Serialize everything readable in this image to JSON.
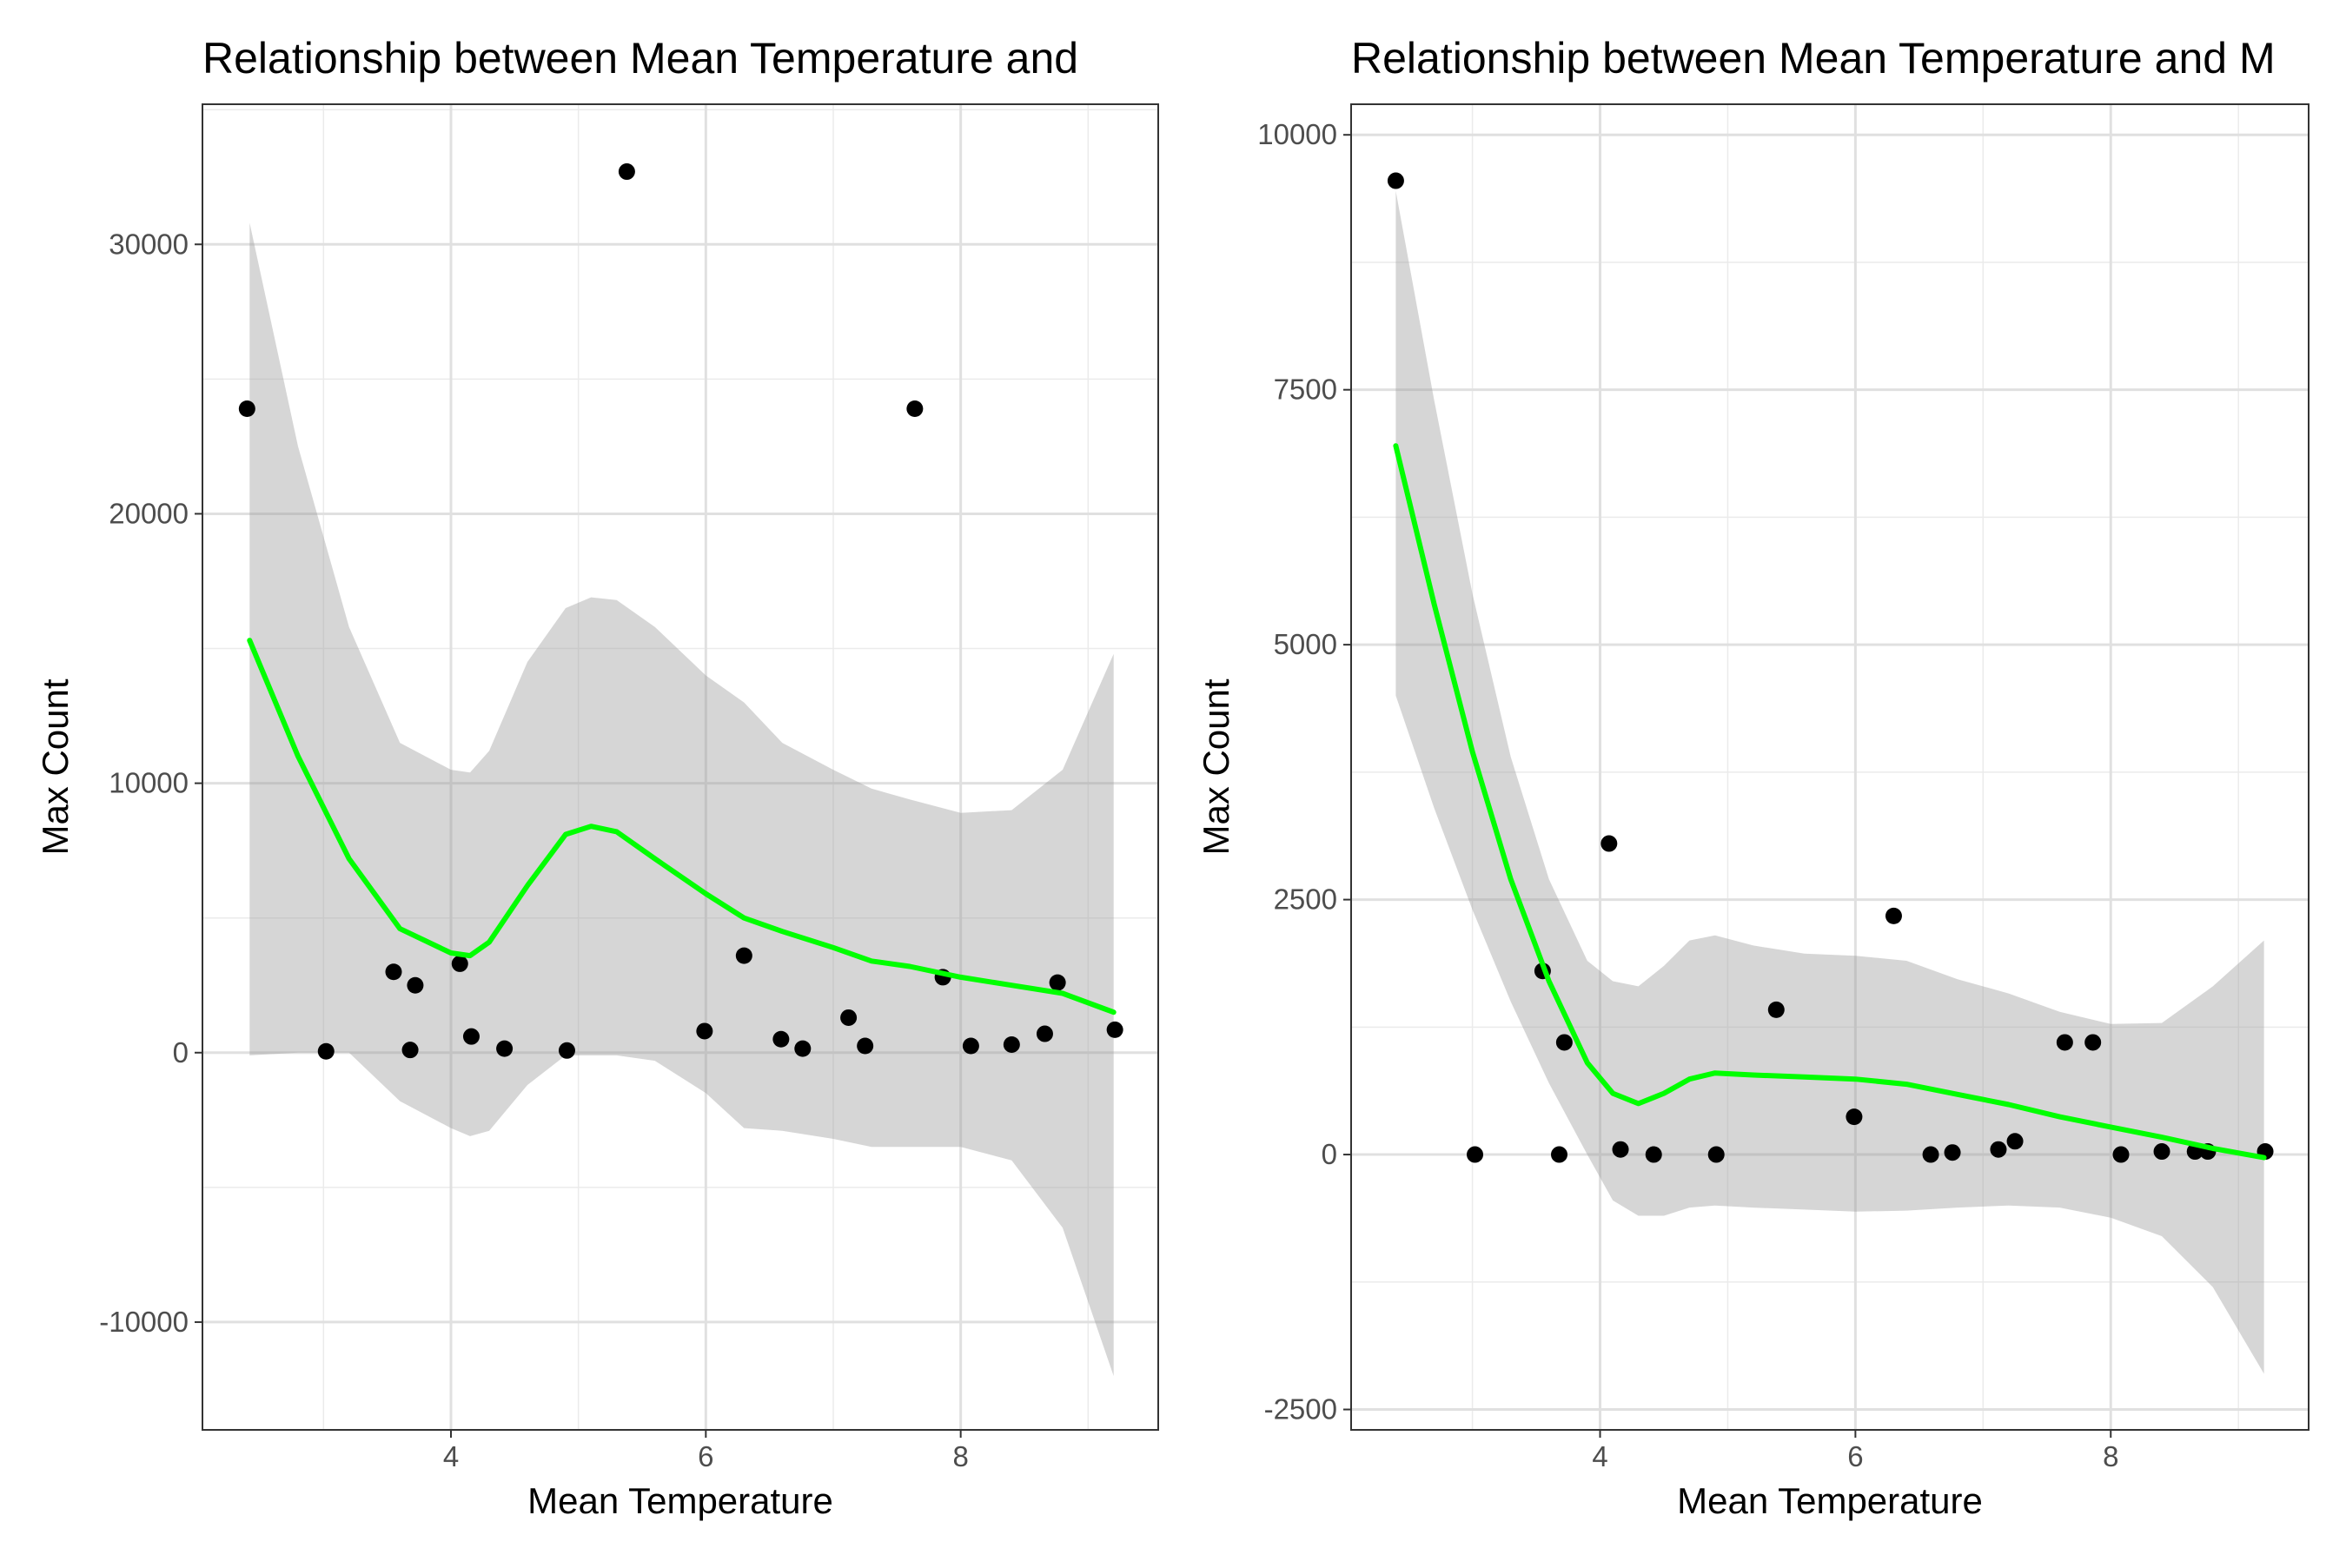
{
  "chart_data": [
    {
      "type": "scatter",
      "title": "Relationship between Mean Temperature and",
      "xlabel": "Mean Temperature",
      "ylabel": "Max Count",
      "xlim": [
        2.05,
        9.55
      ],
      "ylim": [
        -14000,
        35200
      ],
      "xticks": [
        4,
        6,
        8
      ],
      "xtick_labels": [
        "4",
        "6",
        "8"
      ],
      "yticks": [
        -10000,
        0,
        10000,
        20000,
        30000
      ],
      "ytick_labels": [
        "-10000",
        "0",
        "10000",
        "20000",
        "30000"
      ],
      "grid": true,
      "points": [
        {
          "x": 2.4,
          "y": 23900
        },
        {
          "x": 3.02,
          "y": 50
        },
        {
          "x": 3.55,
          "y": 3000
        },
        {
          "x": 3.68,
          "y": 100
        },
        {
          "x": 3.72,
          "y": 2500
        },
        {
          "x": 4.07,
          "y": 3300
        },
        {
          "x": 4.16,
          "y": 600
        },
        {
          "x": 4.42,
          "y": 150
        },
        {
          "x": 4.91,
          "y": 80
        },
        {
          "x": 5.38,
          "y": 32700
        },
        {
          "x": 5.99,
          "y": 800
        },
        {
          "x": 6.3,
          "y": 3600
        },
        {
          "x": 6.59,
          "y": 500
        },
        {
          "x": 6.76,
          "y": 150
        },
        {
          "x": 7.12,
          "y": 1300
        },
        {
          "x": 7.25,
          "y": 250
        },
        {
          "x": 7.64,
          "y": 23900
        },
        {
          "x": 7.86,
          "y": 2800
        },
        {
          "x": 8.08,
          "y": 250
        },
        {
          "x": 8.4,
          "y": 300
        },
        {
          "x": 8.66,
          "y": 700
        },
        {
          "x": 8.76,
          "y": 2600
        },
        {
          "x": 9.21,
          "y": 850
        }
      ],
      "smooth": {
        "color": "#00ff00",
        "x": [
          2.42,
          2.8,
          3.2,
          3.6,
          4.0,
          4.15,
          4.3,
          4.6,
          4.9,
          5.1,
          5.3,
          5.6,
          6.0,
          6.3,
          6.6,
          7.0,
          7.3,
          7.6,
          8.0,
          8.4,
          8.8,
          9.2
        ],
        "fit": [
          15300,
          11000,
          7200,
          4600,
          3700,
          3600,
          4100,
          6200,
          8100,
          8400,
          8200,
          7200,
          5900,
          5000,
          4500,
          3900,
          3400,
          3200,
          2800,
          2500,
          2200,
          1500
        ],
        "lower": [
          -100,
          0,
          0,
          -1800,
          -2800,
          -3100,
          -2900,
          -1200,
          -100,
          -100,
          -100,
          -300,
          -1500,
          -2800,
          -2900,
          -3200,
          -3500,
          -3500,
          -3500,
          -4000,
          -6500,
          -12000
        ],
        "upper": [
          30800,
          22500,
          15800,
          11500,
          10500,
          10400,
          11200,
          14500,
          16500,
          16900,
          16800,
          15800,
          14000,
          13000,
          11500,
          10500,
          9800,
          9400,
          8900,
          9000,
          10500,
          14800
        ]
      }
    },
    {
      "type": "scatter",
      "title": "Relationship between Mean Temperature and M",
      "xlabel": "Mean Temperature",
      "ylabel": "Max Count",
      "xlim": [
        2.05,
        9.55
      ],
      "ylim": [
        -2700,
        10300
      ],
      "xticks": [
        4,
        6,
        8
      ],
      "xtick_labels": [
        "4",
        "6",
        "8"
      ],
      "yticks": [
        -2500,
        0,
        2500,
        5000,
        7500,
        10000
      ],
      "ytick_labels": [
        "-2500",
        "0",
        "2500",
        "5000",
        "7500",
        "10000"
      ],
      "grid": true,
      "points": [
        {
          "x": 2.4,
          "y": 9550
        },
        {
          "x": 3.02,
          "y": 0
        },
        {
          "x": 3.55,
          "y": 1800
        },
        {
          "x": 3.68,
          "y": 0
        },
        {
          "x": 3.72,
          "y": 1100
        },
        {
          "x": 4.07,
          "y": 3050
        },
        {
          "x": 4.16,
          "y": 50
        },
        {
          "x": 4.42,
          "y": 0
        },
        {
          "x": 4.91,
          "y": 0
        },
        {
          "x": 5.38,
          "y": 1420
        },
        {
          "x": 5.99,
          "y": 370
        },
        {
          "x": 6.3,
          "y": 2340
        },
        {
          "x": 6.59,
          "y": 0
        },
        {
          "x": 6.76,
          "y": 20
        },
        {
          "x": 7.12,
          "y": 50
        },
        {
          "x": 7.25,
          "y": 130
        },
        {
          "x": 7.64,
          "y": 1100
        },
        {
          "x": 7.86,
          "y": 1100
        },
        {
          "x": 8.08,
          "y": 0
        },
        {
          "x": 8.4,
          "y": 30
        },
        {
          "x": 8.66,
          "y": 30
        },
        {
          "x": 8.76,
          "y": 30
        },
        {
          "x": 9.21,
          "y": 30
        }
      ],
      "smooth": {
        "color": "#00ff00",
        "x": [
          2.4,
          2.7,
          3.0,
          3.3,
          3.6,
          3.9,
          4.1,
          4.3,
          4.5,
          4.7,
          4.9,
          5.2,
          5.6,
          6.0,
          6.4,
          6.8,
          7.2,
          7.6,
          8.0,
          8.4,
          8.8,
          9.2
        ],
        "fit": [
          6950,
          5400,
          3950,
          2700,
          1700,
          900,
          600,
          500,
          600,
          740,
          800,
          780,
          760,
          740,
          690,
          590,
          490,
          370,
          270,
          170,
          60,
          -30
        ],
        "lower": [
          4500,
          3400,
          2400,
          1500,
          700,
          0,
          -450,
          -600,
          -600,
          -520,
          -500,
          -520,
          -540,
          -560,
          -550,
          -520,
          -500,
          -520,
          -620,
          -800,
          -1300,
          -2150
        ],
        "upper": [
          9450,
          7400,
          5500,
          3900,
          2700,
          1900,
          1700,
          1650,
          1850,
          2100,
          2150,
          2050,
          1970,
          1950,
          1900,
          1720,
          1580,
          1400,
          1280,
          1290,
          1650,
          2100
        ]
      }
    }
  ]
}
